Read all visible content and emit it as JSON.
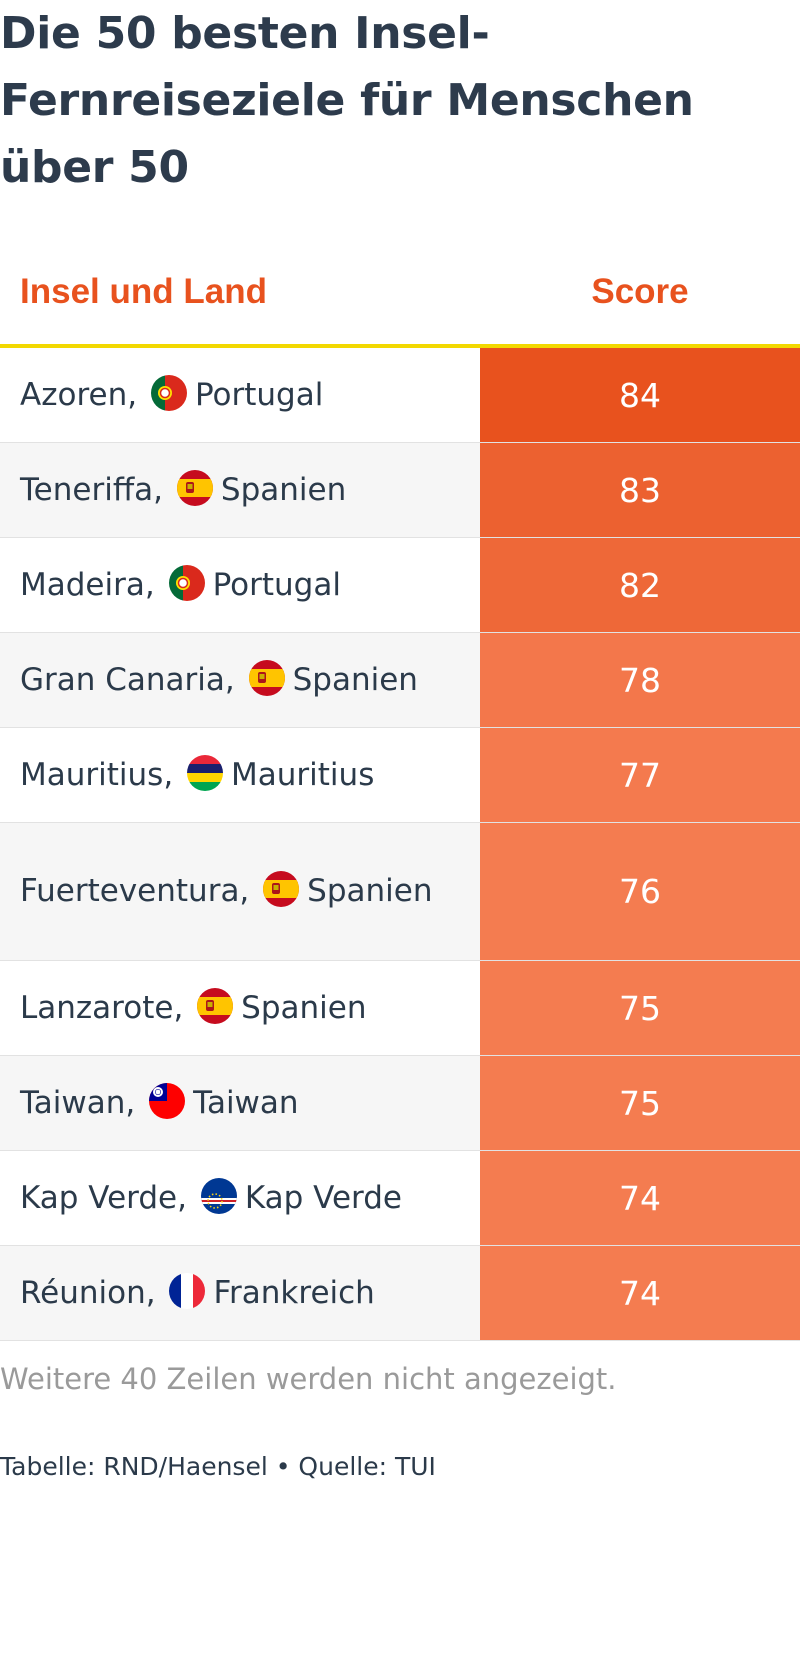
{
  "title": "Die 50 besten Insel-Fernreiseziele für Menschen über 50",
  "chart_data": {
    "type": "table",
    "title": "Die 50 besten Insel-Fernreiseziele für Menschen über 50",
    "columns": [
      "Insel und Land",
      "Score"
    ],
    "rows": [
      {
        "island": "Azoren,",
        "flag": "portugal-flag-icon",
        "country": "Portugal",
        "score": 84
      },
      {
        "island": "Teneriffa,",
        "flag": "spain-flag-icon",
        "country": "Spanien",
        "score": 83
      },
      {
        "island": "Madeira,",
        "flag": "portugal-flag-icon",
        "country": "Portugal",
        "score": 82
      },
      {
        "island": "Gran Canaria,",
        "flag": "spain-flag-icon",
        "country": "Spanien",
        "score": 78
      },
      {
        "island": "Mauritius,",
        "flag": "mauritius-flag-icon",
        "country": "Mauritius",
        "score": 77
      },
      {
        "island": "Fuerteventura,",
        "flag": "spain-flag-icon",
        "country": "Spanien",
        "score": 76
      },
      {
        "island": "Lanzarote,",
        "flag": "spain-flag-icon",
        "country": "Spanien",
        "score": 75
      },
      {
        "island": "Taiwan,",
        "flag": "taiwan-flag-icon",
        "country": "Taiwan",
        "score": 75
      },
      {
        "island": "Kap Verde,",
        "flag": "cape-verde-flag-icon",
        "country": "Kap Verde",
        "score": 74
      },
      {
        "island": "Réunion,",
        "flag": "france-flag-icon",
        "country": "Frankreich",
        "score": 74
      }
    ],
    "color_scale": {
      "max_color": "#e8521e",
      "min_color": "#f47c50"
    }
  },
  "note": "Weitere 40 Zeilen werden nicht angezeigt.",
  "source": "Tabelle: RND/Haensel • Quelle: TUI",
  "colors": {
    "header_text": "#e8521e",
    "header_rule": "#f2d800",
    "title": "#2d3b4c"
  }
}
